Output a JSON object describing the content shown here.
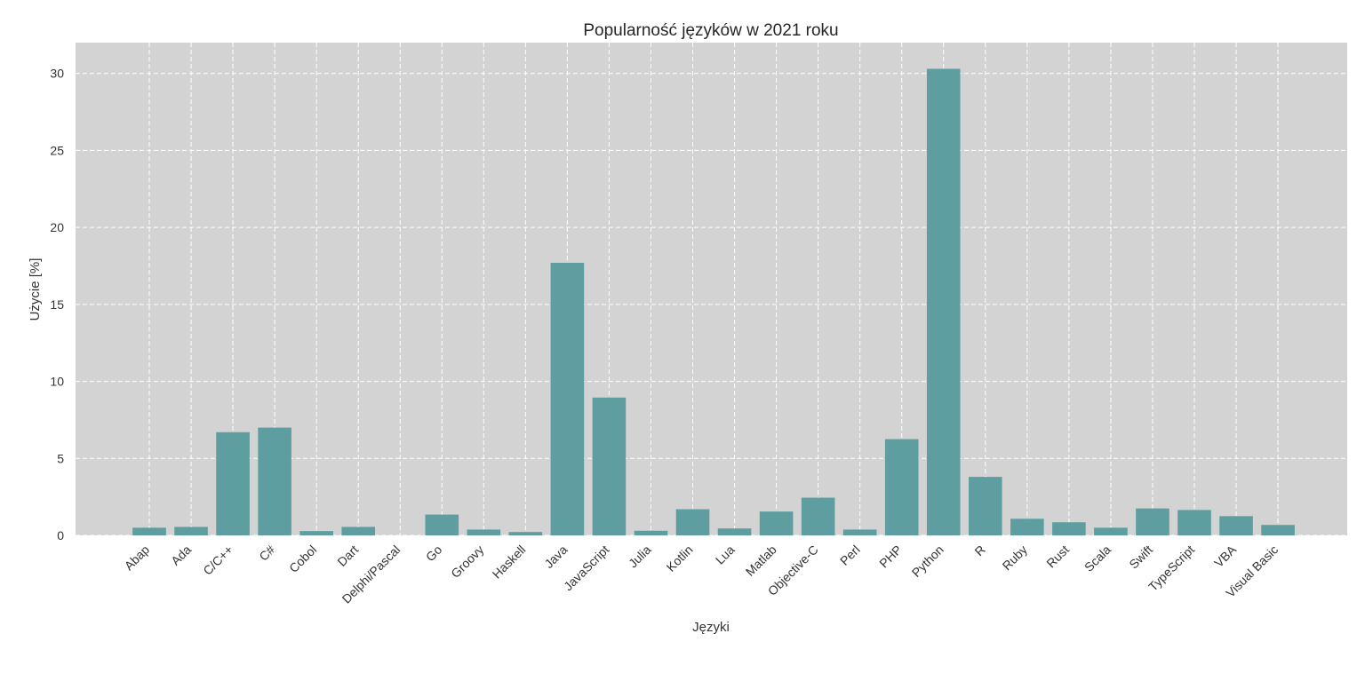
{
  "chart_data": {
    "type": "bar",
    "title": "Popularność języków w 2021 roku",
    "xlabel": "Języki",
    "ylabel": "Użycie [%]",
    "ylim": [
      0,
      32
    ],
    "yticks": [
      0,
      5,
      10,
      15,
      20,
      25,
      30
    ],
    "grid": true,
    "colors": {
      "bar": "#5f9ea0",
      "plot_background": "#d3d3d3",
      "grid": "#ffffff"
    },
    "categories": [
      "Abap",
      "Ada",
      "C/C++",
      "C#",
      "Cobol",
      "Dart",
      "Delphi/Pascal",
      "Go",
      "Groovy",
      "Haskell",
      "Java",
      "JavaScript",
      "Julia",
      "Kotlin",
      "Lua",
      "Matlab",
      "Objective-C",
      "Perl",
      "PHP",
      "Python",
      "R",
      "Ruby",
      "Rust",
      "Scala",
      "Swift",
      "TypeScript",
      "VBA",
      "Visual Basic"
    ],
    "values": [
      0.5,
      0.55,
      6.7,
      7.0,
      0.28,
      0.55,
      0.0,
      1.35,
      0.38,
      0.22,
      17.7,
      8.95,
      0.3,
      1.7,
      0.45,
      1.55,
      2.45,
      0.38,
      6.25,
      30.3,
      3.8,
      1.08,
      0.85,
      0.5,
      1.75,
      1.65,
      1.25,
      0.68
    ]
  }
}
